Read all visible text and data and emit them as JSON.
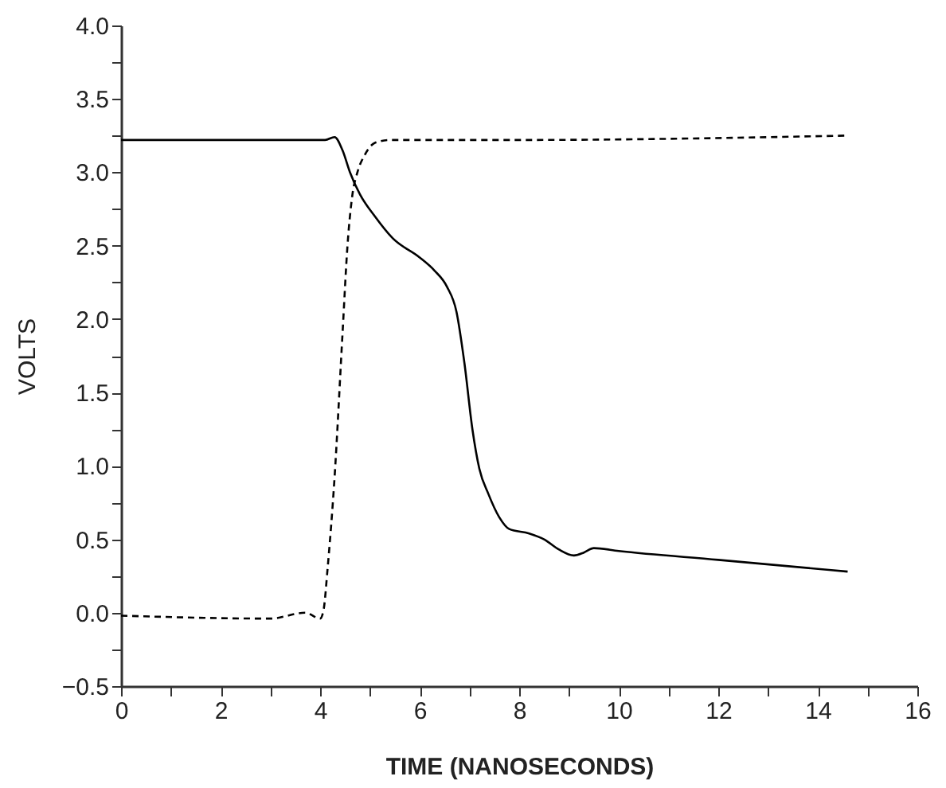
{
  "chart_data": {
    "type": "line",
    "xlabel": "TIME (NANOSECONDS)",
    "ylabel": "VOLTS",
    "xlim": [
      0,
      16
    ],
    "xticks": [
      0,
      {
        "value": 1,
        "label": null
      },
      2,
      {
        "value": 3,
        "label": null
      },
      4,
      {
        "value": 5,
        "label": null
      },
      6,
      {
        "value": 7,
        "label": null
      },
      8,
      {
        "value": 9,
        "label": null
      },
      10,
      {
        "value": 11,
        "label": null
      },
      12,
      {
        "value": 13,
        "label": null
      },
      14,
      {
        "value": 15,
        "label": null
      },
      16
    ],
    "ylim": [
      -0.5,
      4.0
    ],
    "yticks": [
      {
        "value": -0.5,
        "label": "−0.5"
      },
      {
        "value": -0.25,
        "label": null
      },
      {
        "value": 0,
        "label": "0.0"
      },
      {
        "value": 0.25,
        "label": null
      },
      0.5,
      {
        "value": 0.75,
        "label": null
      },
      {
        "value": 1,
        "label": "1.0"
      },
      {
        "value": 1.25,
        "label": null
      },
      1.5,
      {
        "value": 1.75,
        "label": null
      },
      {
        "value": 2,
        "label": "2.0"
      },
      {
        "value": 2.25,
        "label": null
      },
      2.5,
      {
        "value": 2.75,
        "label": null
      },
      {
        "value": 3,
        "label": "3.0"
      },
      {
        "value": 3.25,
        "label": null
      },
      3.5,
      {
        "value": 3.75,
        "label": null
      },
      {
        "value": 4,
        "label": "4.0"
      }
    ],
    "grid": false,
    "marker": "none",
    "series": [
      {
        "color": "#000000",
        "line_style": "solid",
        "x": [
          0,
          4.1,
          4.29,
          4.45,
          4.6,
          4.8,
          5.1,
          5.46,
          6.0,
          6.3,
          6.55,
          6.74,
          6.9,
          7.06,
          7.2,
          7.38,
          7.6,
          7.8,
          8.2,
          8.5,
          8.8,
          9.1,
          9.3,
          9.5,
          10,
          12,
          14.6
        ],
        "values": [
          3.22,
          3.22,
          3.24,
          3.15,
          3.0,
          2.85,
          2.7,
          2.55,
          2.42,
          2.33,
          2.22,
          2.05,
          1.7,
          1.25,
          0.98,
          0.81,
          0.65,
          0.57,
          0.54,
          0.5,
          0.43,
          0.39,
          0.41,
          0.44,
          0.42,
          0.36,
          0.28
        ]
      },
      {
        "color": "#000000",
        "line_style": "dashed",
        "x": [
          0,
          3.0,
          3.7,
          4.0,
          4.07,
          4.15,
          4.29,
          4.45,
          4.55,
          4.65,
          4.75,
          4.9,
          5.1,
          5.4,
          8,
          14.6
        ],
        "values": [
          -0.02,
          -0.04,
          0.0,
          -0.04,
          0.02,
          0.3,
          0.92,
          1.9,
          2.5,
          2.85,
          3.0,
          3.12,
          3.2,
          3.22,
          3.22,
          3.25
        ]
      }
    ]
  }
}
